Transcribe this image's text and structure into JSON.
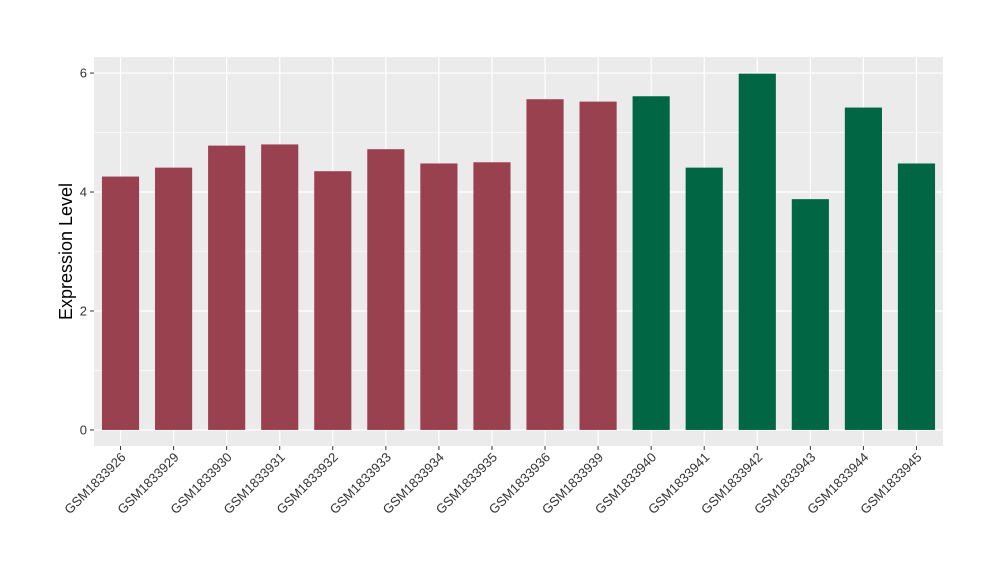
{
  "chart_data": {
    "type": "bar",
    "title": "",
    "xlabel": "",
    "ylabel": "Expression Level",
    "ylim": [
      -0.27,
      6.27
    ],
    "yticks": [
      0,
      2,
      4,
      6
    ],
    "grid": true,
    "legend": "none",
    "categories": [
      "GSM1833926",
      "GSM1833929",
      "GSM1833930",
      "GSM1833931",
      "GSM1833932",
      "GSM1833933",
      "GSM1833934",
      "GSM1833935",
      "GSM1833936",
      "GSM1833939",
      "GSM1833940",
      "GSM1833941",
      "GSM1833942",
      "GSM1833943",
      "GSM1833944",
      "GSM1833945"
    ],
    "values": [
      4.26,
      4.41,
      4.78,
      4.8,
      4.35,
      4.72,
      4.48,
      4.5,
      5.56,
      5.52,
      5.61,
      4.41,
      5.99,
      3.88,
      5.42,
      4.48
    ],
    "groups": [
      0,
      0,
      0,
      0,
      0,
      0,
      0,
      0,
      0,
      0,
      1,
      1,
      1,
      1,
      1,
      1
    ],
    "colors": {
      "group_0": "#9A4150",
      "group_1": "#006644",
      "panel_bg": "#EBEBEB",
      "grid": "#FFFFFF"
    }
  }
}
